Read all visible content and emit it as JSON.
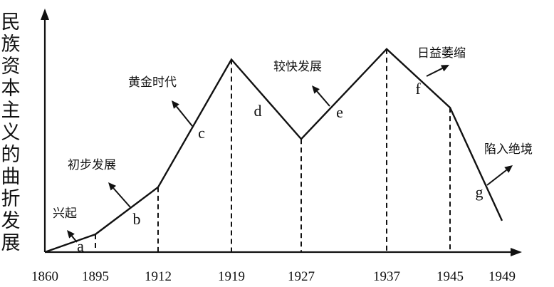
{
  "chart_data": {
    "type": "line",
    "title": "",
    "ylabel": "民族资本主义的曲折发展",
    "xlabel": "",
    "x_ticks": [
      "1860",
      "1895",
      "1912",
      "1919",
      "1927",
      "1937",
      "1945",
      "1949"
    ],
    "series": [
      {
        "points": [
          {
            "x": "1860",
            "level": 0
          },
          {
            "x": "1895",
            "level": 0.085
          },
          {
            "x": "1912",
            "level": 0.31
          },
          {
            "x": "1919",
            "level": 0.92
          },
          {
            "x": "1927",
            "level": 0.54
          },
          {
            "x": "1937",
            "level": 0.97
          },
          {
            "x": "1945",
            "level": 0.69
          },
          {
            "x": "1949",
            "level": 0.15
          }
        ]
      }
    ],
    "dashed_drops": [
      "1895",
      "1912",
      "1919",
      "1927",
      "1937",
      "1945"
    ],
    "segment_labels": [
      {
        "label": "a",
        "from": "1860",
        "to": "1895"
      },
      {
        "label": "b",
        "from": "1895",
        "to": "1912"
      },
      {
        "label": "c",
        "from": "1912",
        "to": "1919"
      },
      {
        "label": "d",
        "from": "1919",
        "to": "1927"
      },
      {
        "label": "e",
        "from": "1927",
        "to": "1937"
      },
      {
        "label": "f",
        "from": "1937",
        "to": "1945"
      },
      {
        "label": "g",
        "from": "1945",
        "to": "1949"
      }
    ],
    "annotations": [
      {
        "segment": "a",
        "text": "兴起"
      },
      {
        "segment": "b",
        "text": "初步发展"
      },
      {
        "segment": "c",
        "text": "黄金时代"
      },
      {
        "segment": "e",
        "text": "较快发展"
      },
      {
        "segment": "f",
        "text": "日益萎缩"
      },
      {
        "segment": "g",
        "text": "陷入绝境"
      }
    ]
  }
}
